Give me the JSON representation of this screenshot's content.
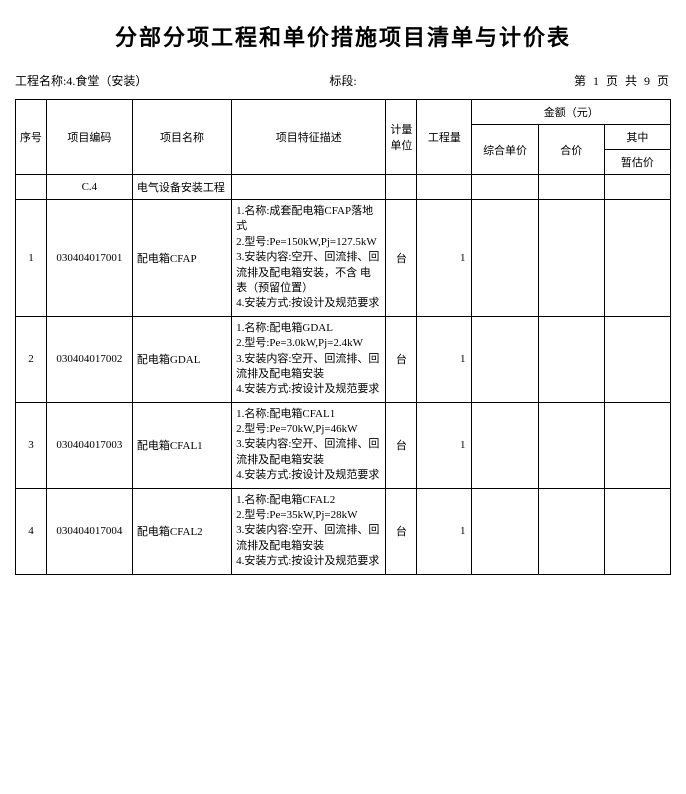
{
  "title": "分部分项工程和单价措施项目清单与计价表",
  "header": {
    "project_label": "工程名称:",
    "project_name": "4.食堂（安装）",
    "section_label": "标段:",
    "section_value": "",
    "page_info": "第 1 页 共 9 页"
  },
  "columns": {
    "seq": "序号",
    "code": "项目编码",
    "name": "项目名称",
    "desc": "项目特征描述",
    "unit": "计量单位",
    "qty": "工程量",
    "amount_header": "金额（元）",
    "unit_price": "综合单价",
    "total_price": "合价",
    "mid_header": "其中",
    "provisional": "暂估价"
  },
  "rows": [
    {
      "seq": "",
      "code": "C.4",
      "name": "电气设备安装工程",
      "desc": "",
      "unit": "",
      "qty": "",
      "is_section": true
    },
    {
      "seq": "1",
      "code": "030404017001",
      "name": "配电箱CFAP",
      "desc": "1.名称:成套配电箱CFAP落地式\n2.型号:Pe=150kW,Pj=127.5kW\n3.安装内容:空开、回流排、回流排及配电箱安装，不含 电表（预留位置）\n4.安装方式:按设计及规范要求",
      "unit": "台",
      "qty": "1"
    },
    {
      "seq": "2",
      "code": "030404017002",
      "name": "配电箱GDAL",
      "desc": "1.名称:配电箱GDAL\n2.型号:Pe=3.0kW,Pj=2.4kW\n3.安装内容:空开、回流排、回流排及配电箱安装\n4.安装方式:按设计及规范要求",
      "unit": "台",
      "qty": "1"
    },
    {
      "seq": "3",
      "code": "030404017003",
      "name": "配电箱CFAL1",
      "desc": "1.名称:配电箱CFAL1\n2.型号:Pe=70kW,Pj=46kW\n3.安装内容:空开、回流排、回流排及配电箱安装\n4.安装方式:按设计及规范要求",
      "unit": "台",
      "qty": "1"
    },
    {
      "seq": "4",
      "code": "030404017004",
      "name": "配电箱CFAL2",
      "desc": "1.名称:配电箱CFAL2\n2.型号:Pe=35kW,Pj=28kW\n3.安装内容:空开、回流排、回流排及配电箱安装\n4.安装方式:按设计及规范要求",
      "unit": "台",
      "qty": "1"
    }
  ]
}
